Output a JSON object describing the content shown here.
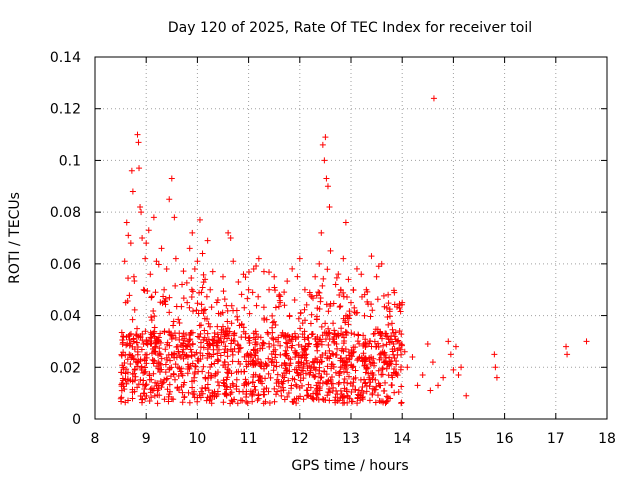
{
  "chart_data": {
    "type": "scatter",
    "title": "Day 120 of 2025, Rate Of TEC Index for receiver toil",
    "xlabel": "GPS time / hours",
    "ylabel": "ROTI / TECUs",
    "xlim": [
      8,
      18
    ],
    "ylim": [
      0,
      0.14
    ],
    "xticks": [
      8,
      9,
      10,
      11,
      12,
      13,
      14,
      15,
      16,
      17,
      18
    ],
    "yticks": [
      0,
      0.02,
      0.04,
      0.06,
      0.08,
      0.1,
      0.12,
      0.14
    ],
    "ytick_labels": [
      "0",
      "0.02",
      "0.04",
      "0.06",
      "0.08",
      "0.1",
      "0.12",
      "0.14"
    ],
    "xtick_labels": [
      "8",
      "9",
      "10",
      "11",
      "12",
      "13",
      "14",
      "15",
      "16",
      "17",
      "18"
    ],
    "grid": true,
    "marker": "+",
    "color": "#ff0000",
    "series": [
      {
        "name": "ROTI",
        "points": [
          [
            8.52,
            0.018
          ],
          [
            8.55,
            0.032
          ],
          [
            8.58,
            0.061
          ],
          [
            8.6,
            0.045
          ],
          [
            8.62,
            0.076
          ],
          [
            8.65,
            0.071
          ],
          [
            8.67,
            0.025
          ],
          [
            8.7,
            0.068
          ],
          [
            8.72,
            0.096
          ],
          [
            8.74,
            0.088
          ],
          [
            8.76,
            0.055
          ],
          [
            8.78,
            0.015
          ],
          [
            8.8,
            0.022
          ],
          [
            8.83,
            0.11
          ],
          [
            8.85,
            0.107
          ],
          [
            8.86,
            0.097
          ],
          [
            8.88,
            0.082
          ],
          [
            8.9,
            0.08
          ],
          [
            8.92,
            0.07
          ],
          [
            8.95,
            0.05
          ],
          [
            8.98,
            0.062
          ],
          [
            9.0,
            0.068
          ],
          [
            9.05,
            0.073
          ],
          [
            9.08,
            0.056
          ],
          [
            9.1,
            0.047
          ],
          [
            9.15,
            0.078
          ],
          [
            9.2,
            0.061
          ],
          [
            9.25,
            0.03
          ],
          [
            9.3,
            0.066
          ],
          [
            9.35,
            0.05
          ],
          [
            9.4,
            0.058
          ],
          [
            9.45,
            0.085
          ],
          [
            9.5,
            0.093
          ],
          [
            9.55,
            0.078
          ],
          [
            9.58,
            0.062
          ],
          [
            9.62,
            0.02
          ],
          [
            9.7,
            0.052
          ],
          [
            9.8,
            0.045
          ],
          [
            9.85,
            0.066
          ],
          [
            9.9,
            0.072
          ],
          [
            9.95,
            0.058
          ],
          [
            10.0,
            0.061
          ],
          [
            10.05,
            0.077
          ],
          [
            10.1,
            0.064
          ],
          [
            10.15,
            0.054
          ],
          [
            10.2,
            0.069
          ],
          [
            10.25,
            0.05
          ],
          [
            10.3,
            0.057
          ],
          [
            10.4,
            0.046
          ],
          [
            10.5,
            0.055
          ],
          [
            10.6,
            0.072
          ],
          [
            10.65,
            0.07
          ],
          [
            10.7,
            0.061
          ],
          [
            10.8,
            0.053
          ],
          [
            10.9,
            0.056
          ],
          [
            11.0,
            0.05
          ],
          [
            11.1,
            0.058
          ],
          [
            11.2,
            0.062
          ],
          [
            11.3,
            0.057
          ],
          [
            11.4,
            0.05
          ],
          [
            11.5,
            0.055
          ],
          [
            11.6,
            0.048
          ],
          [
            11.7,
            0.044
          ],
          [
            11.8,
            0.04
          ],
          [
            11.9,
            0.046
          ],
          [
            12.0,
            0.062
          ],
          [
            12.1,
            0.05
          ],
          [
            12.2,
            0.048
          ],
          [
            12.3,
            0.055
          ],
          [
            12.38,
            0.06
          ],
          [
            12.42,
            0.072
          ],
          [
            12.45,
            0.106
          ],
          [
            12.48,
            0.1
          ],
          [
            12.5,
            0.109
          ],
          [
            12.52,
            0.093
          ],
          [
            12.55,
            0.09
          ],
          [
            12.58,
            0.082
          ],
          [
            12.6,
            0.065
          ],
          [
            12.7,
            0.052
          ],
          [
            12.8,
            0.05
          ],
          [
            12.85,
            0.062
          ],
          [
            12.9,
            0.076
          ],
          [
            12.95,
            0.054
          ],
          [
            13.0,
            0.045
          ],
          [
            13.1,
            0.041
          ],
          [
            13.2,
            0.056
          ],
          [
            13.3,
            0.05
          ],
          [
            13.4,
            0.063
          ],
          [
            13.5,
            0.055
          ],
          [
            13.6,
            0.06
          ],
          [
            13.7,
            0.043
          ],
          [
            13.8,
            0.037
          ],
          [
            13.9,
            0.03
          ],
          [
            14.0,
            0.045
          ],
          [
            14.05,
            0.026
          ],
          [
            14.1,
            0.02
          ],
          [
            14.2,
            0.024
          ],
          [
            14.3,
            0.013
          ],
          [
            14.4,
            0.017
          ],
          [
            14.5,
            0.029
          ],
          [
            14.55,
            0.011
          ],
          [
            14.6,
            0.022
          ],
          [
            14.62,
            0.124
          ],
          [
            14.7,
            0.013
          ],
          [
            14.8,
            0.016
          ],
          [
            14.9,
            0.03
          ],
          [
            14.95,
            0.025
          ],
          [
            15.0,
            0.019
          ],
          [
            15.05,
            0.028
          ],
          [
            15.1,
            0.017
          ],
          [
            15.15,
            0.02
          ],
          [
            15.25,
            0.009
          ],
          [
            15.8,
            0.025
          ],
          [
            15.82,
            0.02
          ],
          [
            15.85,
            0.016
          ],
          [
            17.2,
            0.028
          ],
          [
            17.22,
            0.025
          ],
          [
            17.6,
            0.03
          ]
        ]
      }
    ],
    "density_note": "dense cloud of points between x=8.5 and x=14 with y mostly between 0.005 and 0.05"
  }
}
